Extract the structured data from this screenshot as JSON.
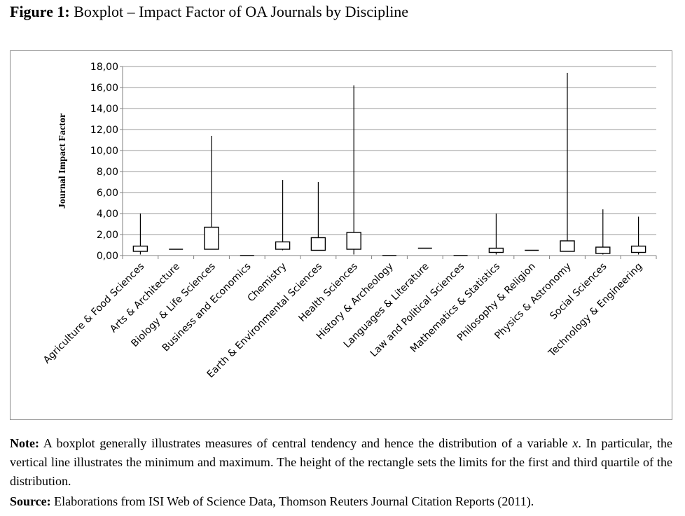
{
  "figure": {
    "title_label": "Figure 1:",
    "title_text": "Boxplot – Impact Factor of OA Journals by Discipline"
  },
  "note": {
    "label": "Note:",
    "text_before_var": "A boxplot generally illustrates measures of central tendency and hence the distribution of a variable",
    "variable": "x",
    "text_after_var": ". In particular, the vertical line illustrates the minimum and maximum. The height of the rectangle sets the limits for the first and third quartile of the distribution."
  },
  "source": {
    "label": "Source:",
    "text": "Elaborations from ISI Web of Science Data, Thomson Reuters Journal Citation Reports (2011)."
  },
  "chart_data": {
    "type": "boxplot",
    "title": "",
    "xlabel": "",
    "ylabel": "Journal Impact Factor",
    "ylim": [
      0,
      18
    ],
    "yticks": [
      0,
      2,
      4,
      6,
      8,
      10,
      12,
      14,
      16,
      18
    ],
    "ytick_labels": [
      "0,00",
      "2,00",
      "4,00",
      "6,00",
      "8,00",
      "10,00",
      "12,00",
      "14,00",
      "16,00",
      "18,00"
    ],
    "grid": true,
    "legend": "none",
    "categories": [
      "Agriculture & Food Sciences",
      "Arts & Architecture",
      "Biology & Life Sciences",
      "Business and Economics",
      "Chemistry",
      "Earth & Environmental Sciences",
      "Health Sciences",
      "History & Archeology",
      "Languages & Literature",
      "Law and Political Sciences",
      "Mathematics & Statistics",
      "Philosophy & Religion",
      "Physics & Astronomy",
      "Social Sciences",
      "Technology & Engineering"
    ],
    "min": [
      0.1,
      0.6,
      0.6,
      0.0,
      0.5,
      0.5,
      0.1,
      0.0,
      0.7,
      0.0,
      0.1,
      0.5,
      0.4,
      0.1,
      0.1
    ],
    "q1": [
      0.4,
      0.6,
      0.6,
      0.0,
      0.6,
      0.5,
      0.6,
      0.0,
      0.7,
      0.0,
      0.3,
      0.5,
      0.4,
      0.2,
      0.3
    ],
    "q3": [
      0.9,
      0.6,
      2.7,
      0.0,
      1.3,
      1.7,
      2.2,
      0.0,
      0.7,
      0.0,
      0.7,
      0.5,
      1.4,
      0.8,
      0.9
    ],
    "max": [
      4.0,
      0.6,
      11.4,
      0.0,
      7.2,
      7.0,
      16.2,
      0.0,
      0.7,
      0.0,
      4.0,
      0.5,
      17.4,
      4.4,
      3.7
    ]
  }
}
